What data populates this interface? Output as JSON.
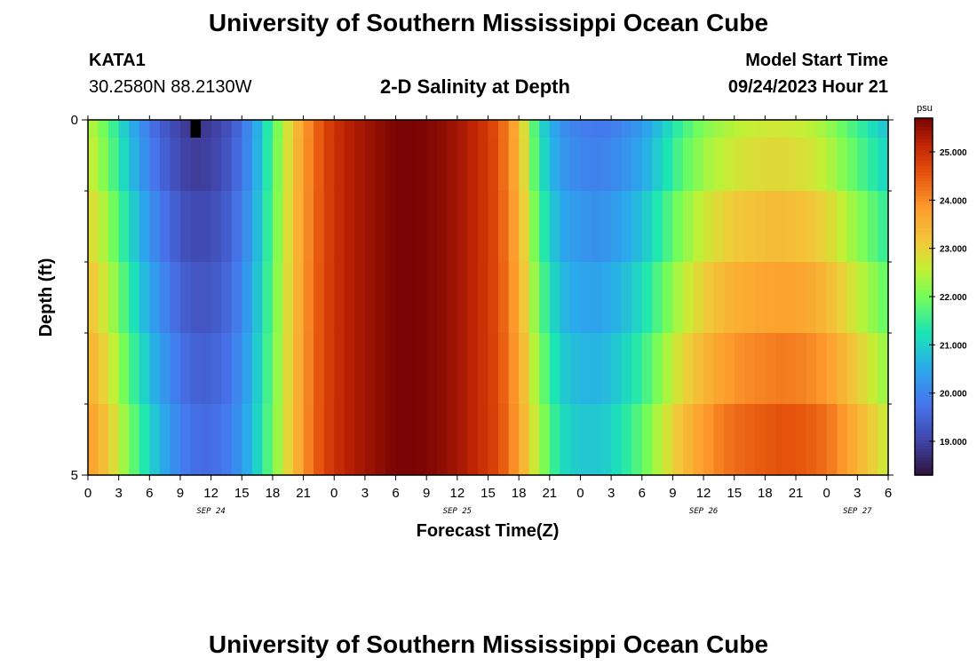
{
  "page": {
    "title_top": "University of Southern Mississippi Ocean Cube",
    "title_bottom": "University of Southern Mississippi Ocean Cube",
    "station": {
      "id": "KATA1",
      "coords": "30.2580N  88.2130W"
    },
    "plot_title": "2-D Salinity at Depth",
    "model_start": {
      "label": "Model Start Time",
      "value": "09/24/2023 Hour 21"
    }
  },
  "chart_data": {
    "type": "heatmap",
    "title": "2-D Salinity at Depth",
    "xlabel": "Forecast Time(Z)",
    "ylabel": "Depth (ft)",
    "x_tick_labels": [
      "0",
      "3",
      "6",
      "9",
      "12",
      "15",
      "18",
      "21",
      "0",
      "3",
      "6",
      "9",
      "12",
      "15",
      "18",
      "21",
      "0",
      "3",
      "6",
      "9",
      "12",
      "15",
      "18",
      "21",
      "0",
      "3",
      "6"
    ],
    "x_date_labels": [
      {
        "text": "SEP 24",
        "at_hour": 12
      },
      {
        "text": "SEP 25",
        "at_hour": 36
      },
      {
        "text": "SEP 26",
        "at_hour": 60
      },
      {
        "text": "SEP 27",
        "at_hour": 75
      }
    ],
    "x_range_hours": [
      0,
      78
    ],
    "y_range_ft": [
      0,
      5
    ],
    "y_tick_labels": [
      "0",
      "5"
    ],
    "depth_levels_ft": [
      0,
      0.5,
      1.5,
      2.5,
      3.5,
      4.5
    ],
    "colorbar": {
      "unit": "psu",
      "range": [
        18.3,
        25.7
      ],
      "tick_values": [
        19.0,
        20.0,
        21.0,
        22.0,
        23.0,
        24.0,
        25.0
      ],
      "tick_labels": [
        "19.000",
        "20.000",
        "21.000",
        "22.000",
        "23.000",
        "24.000",
        "25.000"
      ]
    },
    "time_hours": [
      0,
      2,
      4,
      6,
      8,
      10,
      12,
      14,
      16,
      18,
      20,
      22,
      24,
      26,
      28,
      30,
      32,
      34,
      36,
      38,
      40,
      42,
      44,
      46,
      48,
      50,
      52,
      54,
      56,
      58,
      60,
      62,
      64,
      66,
      68,
      70,
      72,
      74,
      76,
      78
    ],
    "profile_surface": [
      22.6,
      21.8,
      20.7,
      19.8,
      19.2,
      18.8,
      18.9,
      19.3,
      20.2,
      21.7,
      23.2,
      24.3,
      25.0,
      25.3,
      25.5,
      25.7,
      25.7,
      25.6,
      25.4,
      25.1,
      24.6,
      23.4,
      21.2,
      20.2,
      19.9,
      19.8,
      20.0,
      20.3,
      20.9,
      21.6,
      22.1,
      22.4,
      22.6,
      22.7,
      22.7,
      22.6,
      22.3,
      21.8,
      21.3,
      20.8
    ],
    "profile_bottom": [
      24.0,
      23.3,
      22.2,
      21.2,
      20.4,
      19.8,
      19.7,
      20.0,
      20.8,
      22.0,
      23.3,
      24.4,
      25.0,
      25.3,
      25.5,
      25.7,
      25.7,
      25.6,
      25.4,
      25.1,
      24.7,
      23.8,
      22.5,
      21.3,
      21.0,
      21.0,
      21.4,
      22.0,
      22.8,
      23.5,
      24.0,
      24.4,
      24.6,
      24.7,
      24.8,
      24.7,
      24.5,
      24.0,
      23.4,
      22.8
    ],
    "missing_cells": [
      {
        "hour": 10,
        "depth_ft": 0
      }
    ]
  }
}
